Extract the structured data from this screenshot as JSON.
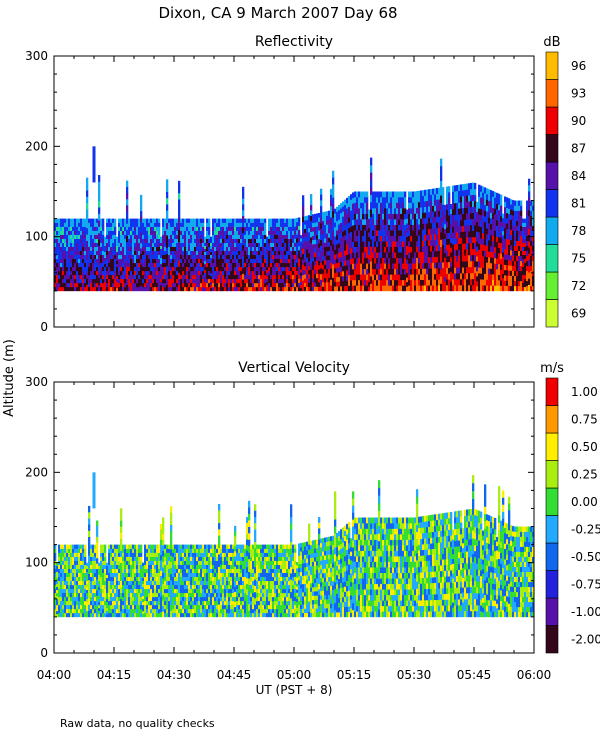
{
  "title": "Dixon, CA  9 March 2007  Day  68",
  "shared_ylabel": "Altitude (m)",
  "xlabel": "UT  (PST + 8)",
  "footnote": "Raw data, no quality checks",
  "x_ticks": [
    "04:00",
    "04:15",
    "04:30",
    "04:45",
    "05:00",
    "05:15",
    "05:30",
    "05:45",
    "06:00"
  ],
  "chart_data": [
    {
      "type": "heatmap",
      "title": "Reflectivity",
      "x_range": [
        "04:00",
        "06:00"
      ],
      "y_range": [
        0,
        300
      ],
      "y_ticks": [
        0,
        100,
        200,
        300
      ],
      "colorbar": {
        "unit": "dB",
        "levels": [
          "69",
          "72",
          "75",
          "78",
          "81",
          "84",
          "87",
          "90",
          "93",
          "96"
        ],
        "colors": [
          "#ccff33",
          "#66ee33",
          "#22dd99",
          "#11aaee",
          "#1133ee",
          "#5511aa",
          "#33061a",
          "#ee0000",
          "#ff6600",
          "#ffbb00"
        ]
      },
      "echo": {
        "base_altitude_m": 40,
        "top_altitude_m_by_time": [
          {
            "t": "04:00",
            "top": 120
          },
          {
            "t": "04:15",
            "top": 120
          },
          {
            "t": "04:30",
            "top": 120
          },
          {
            "t": "04:45",
            "top": 120
          },
          {
            "t": "05:00",
            "top": 120
          },
          {
            "t": "05:10",
            "top": 130
          },
          {
            "t": "05:15",
            "top": 150
          },
          {
            "t": "05:30",
            "top": 150
          },
          {
            "t": "05:45",
            "top": 160
          },
          {
            "t": "05:55",
            "top": 140
          },
          {
            "t": "06:00",
            "top": 140
          }
        ],
        "isolated_echo": {
          "t": "04:10",
          "alt_min": 160,
          "alt_max": 200
        }
      }
    },
    {
      "type": "heatmap",
      "title": "Vertical Velocity",
      "x_range": [
        "04:00",
        "06:00"
      ],
      "y_range": [
        0,
        300
      ],
      "y_ticks": [
        0,
        100,
        200,
        300
      ],
      "colorbar": {
        "unit": "m/s",
        "levels": [
          "-2.00",
          "-1.00",
          "-0.75",
          "-0.50",
          "-0.25",
          "0.00",
          "0.25",
          "0.50",
          "0.75",
          "1.00"
        ],
        "colors": [
          "#33061a",
          "#5511aa",
          "#2222dd",
          "#1166ee",
          "#22aaff",
          "#33dd33",
          "#aaee11",
          "#ffee00",
          "#ff9900",
          "#ee0000"
        ]
      },
      "echo": {
        "base_altitude_m": 40,
        "top_altitude_m_by_time": [
          {
            "t": "04:00",
            "top": 120
          },
          {
            "t": "04:15",
            "top": 120
          },
          {
            "t": "04:30",
            "top": 120
          },
          {
            "t": "04:45",
            "top": 120
          },
          {
            "t": "05:00",
            "top": 120
          },
          {
            "t": "05:10",
            "top": 130
          },
          {
            "t": "05:15",
            "top": 150
          },
          {
            "t": "05:30",
            "top": 150
          },
          {
            "t": "05:45",
            "top": 160
          },
          {
            "t": "05:55",
            "top": 140
          },
          {
            "t": "06:00",
            "top": 140
          }
        ],
        "isolated_echo": {
          "t": "04:10",
          "alt_min": 160,
          "alt_max": 200
        }
      }
    }
  ]
}
